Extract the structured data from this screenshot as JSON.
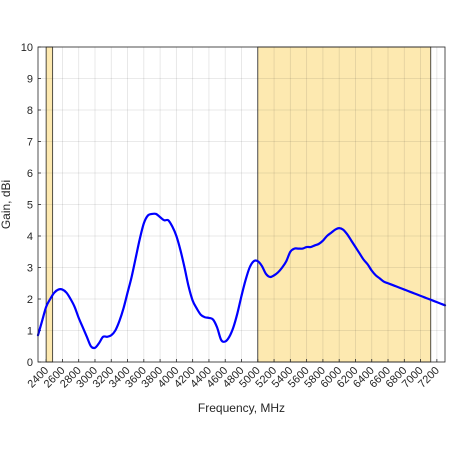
{
  "chart_data": {
    "type": "line",
    "title": "",
    "xlabel": "Frequency, MHz",
    "ylabel": "Gain, dBi",
    "xlim": [
      2300,
      7300
    ],
    "ylim": [
      0,
      10
    ],
    "xticks": [
      2400,
      2600,
      2800,
      3000,
      3200,
      3400,
      3600,
      3800,
      4000,
      4200,
      4400,
      4600,
      4800,
      5000,
      5200,
      5400,
      5600,
      5800,
      6000,
      6200,
      6400,
      6600,
      6800,
      7000,
      7200
    ],
    "yticks": [
      0,
      1,
      2,
      3,
      4,
      5,
      6,
      7,
      8,
      9,
      10
    ],
    "grid": true,
    "shaded_bands": [
      {
        "x_start": 2400,
        "x_end": 2480
      },
      {
        "x_start": 5000,
        "x_end": 7125
      }
    ],
    "series": [
      {
        "color": "#0000ff",
        "x": [
          2300,
          2350,
          2400,
          2450,
          2500,
          2550,
          2600,
          2650,
          2700,
          2750,
          2800,
          2850,
          2900,
          2950,
          3000,
          3050,
          3100,
          3150,
          3200,
          3250,
          3300,
          3350,
          3400,
          3450,
          3500,
          3550,
          3600,
          3650,
          3700,
          3750,
          3800,
          3850,
          3900,
          3950,
          4000,
          4050,
          4100,
          4150,
          4200,
          4250,
          4300,
          4350,
          4400,
          4450,
          4500,
          4550,
          4600,
          4650,
          4700,
          4750,
          4800,
          4850,
          4900,
          4950,
          5000,
          5050,
          5100,
          5150,
          5200,
          5250,
          5300,
          5350,
          5400,
          5450,
          5500,
          5550,
          5600,
          5650,
          5700,
          5750,
          5800,
          5850,
          5900,
          5950,
          6000,
          6050,
          6100,
          6150,
          6200,
          6250,
          6300,
          6350,
          6400,
          6450,
          6500,
          6550,
          6600,
          6650,
          6700,
          6750,
          6800,
          6850,
          6900,
          6950,
          7000,
          7050,
          7100,
          7150,
          7200,
          7250,
          7300
        ],
        "y": [
          0.85,
          1.3,
          1.75,
          2.0,
          2.2,
          2.3,
          2.3,
          2.2,
          2.0,
          1.75,
          1.4,
          1.1,
          0.8,
          0.5,
          0.45,
          0.6,
          0.8,
          0.8,
          0.85,
          1.0,
          1.3,
          1.7,
          2.2,
          2.7,
          3.3,
          3.9,
          4.4,
          4.65,
          4.7,
          4.7,
          4.6,
          4.5,
          4.5,
          4.3,
          4.0,
          3.55,
          3.0,
          2.4,
          1.95,
          1.7,
          1.5,
          1.42,
          1.4,
          1.35,
          1.1,
          0.7,
          0.65,
          0.8,
          1.1,
          1.55,
          2.1,
          2.6,
          3.0,
          3.2,
          3.2,
          3.05,
          2.8,
          2.7,
          2.75,
          2.85,
          3.0,
          3.2,
          3.5,
          3.6,
          3.6,
          3.6,
          3.65,
          3.65,
          3.7,
          3.75,
          3.85,
          4.0,
          4.1,
          4.2,
          4.25,
          4.2,
          4.05,
          3.85,
          3.65,
          3.45,
          3.25,
          3.1,
          2.9,
          2.75,
          2.65,
          2.55,
          2.5,
          2.45,
          2.4,
          2.35,
          2.3,
          2.25,
          2.2,
          2.15,
          2.1,
          2.05,
          2.0,
          1.95,
          1.9,
          1.85,
          1.8
        ]
      }
    ]
  }
}
